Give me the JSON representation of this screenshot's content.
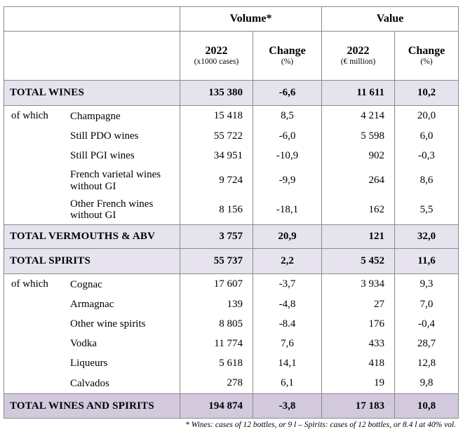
{
  "headers": {
    "volume": "Volume*",
    "value": "Value",
    "year": "2022",
    "volume_unit": "(x1000 cases)",
    "value_unit": "(€ million)",
    "change": "Change",
    "change_unit": "(%)"
  },
  "rows": {
    "total_wines": {
      "label": "TOTAL WINES",
      "vol": "135 380",
      "vol_chg": "-6,6",
      "val": "11 611",
      "val_chg": "10,2"
    },
    "champagne": {
      "group": "of which",
      "label": "Champagne",
      "vol": "15 418",
      "vol_chg": "8,5",
      "val": "4 214",
      "val_chg": "20,0"
    },
    "still_pdo": {
      "label": "Still PDO wines",
      "vol": "55 722",
      "vol_chg": "-6,0",
      "val": "5 598",
      "val_chg": "6,0"
    },
    "still_pgi": {
      "label": "Still PGI wines",
      "vol": "34 951",
      "vol_chg": "-10,9",
      "val": "902",
      "val_chg": "-0,3"
    },
    "varietal": {
      "label_1": "French varietal wines",
      "label_2": "without GI",
      "vol": "9 724",
      "vol_chg": "-9,9",
      "val": "264",
      "val_chg": "8,6"
    },
    "other_french": {
      "label_1": "Other French wines",
      "label_2": "without GI",
      "vol": "8 156",
      "vol_chg": "-18,1",
      "val": "162",
      "val_chg": "5,5"
    },
    "total_vermouths": {
      "label": "TOTAL VERMOUTHS & ABV",
      "vol": "3 757",
      "vol_chg": "20,9",
      "val": "121",
      "val_chg": "32,0"
    },
    "total_spirits": {
      "label": "TOTAL SPIRITS",
      "vol": "55 737",
      "vol_chg": "2,2",
      "val": "5 452",
      "val_chg": "11,6"
    },
    "cognac": {
      "group": "of which",
      "label": "Cognac",
      "vol": "17 607",
      "vol_chg": "-3,7",
      "val": "3 934",
      "val_chg": "9,3"
    },
    "armagnac": {
      "label": "Armagnac",
      "vol": "139",
      "vol_chg": "-4,8",
      "val": "27",
      "val_chg": "7,0"
    },
    "other_spirits": {
      "label": "Other wine spirits",
      "vol": "8 805",
      "vol_chg": "-8.4",
      "val": "176",
      "val_chg": "-0,4"
    },
    "vodka": {
      "label": "Vodka",
      "vol": "11 774",
      "vol_chg": "7,6",
      "val": "433",
      "val_chg": "28,7"
    },
    "liqueurs": {
      "label": "Liqueurs",
      "vol": "5 618",
      "vol_chg": "14,1",
      "val": "418",
      "val_chg": "12,8"
    },
    "calvados": {
      "label": "Calvados",
      "vol": "278",
      "vol_chg": "6,1",
      "val": "19",
      "val_chg": "9,8"
    },
    "grand_total": {
      "label": "TOTAL WINES AND SPIRITS",
      "vol": "194 874",
      "vol_chg": "-3,8",
      "val": "17 183",
      "val_chg": "10,8"
    }
  },
  "footnote": "* Wines: cases of 12 bottles, or 9 l – Spirits: cases of 12 bottles, or 8.4 l at 40% vol.",
  "colors": {
    "total_bg": "#e6e3ee",
    "grand_bg": "#d3c9dd",
    "border": "#8a8a8a"
  }
}
